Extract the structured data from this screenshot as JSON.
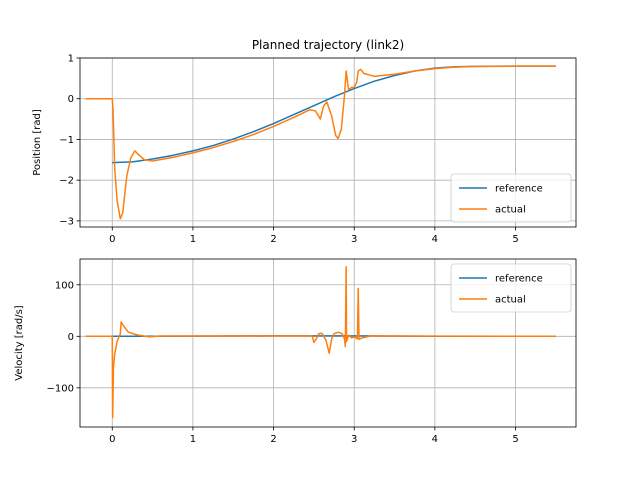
{
  "chart_data": [
    {
      "type": "line",
      "title": "Planned trajectory (link2)",
      "xlabel": "",
      "ylabel": "Position [rad]",
      "xlim": [
        -0.4,
        5.75
      ],
      "ylim": [
        -3.15,
        1.0
      ],
      "xticks": [
        0,
        1,
        2,
        3,
        4,
        5
      ],
      "yticks": [
        -3,
        -2,
        -1,
        0,
        1
      ],
      "grid": true,
      "legend": "bottom-right",
      "series": [
        {
          "name": "reference",
          "color": "#1f77b4",
          "points": [
            [
              0.0,
              -1.57
            ],
            [
              0.25,
              -1.55
            ],
            [
              0.5,
              -1.48
            ],
            [
              0.75,
              -1.39
            ],
            [
              1.0,
              -1.28
            ],
            [
              1.25,
              -1.15
            ],
            [
              1.5,
              -0.99
            ],
            [
              1.75,
              -0.81
            ],
            [
              2.0,
              -0.61
            ],
            [
              2.25,
              -0.39
            ],
            [
              2.5,
              -0.17
            ],
            [
              2.75,
              0.05
            ],
            [
              3.0,
              0.25
            ],
            [
              3.25,
              0.43
            ],
            [
              3.5,
              0.57
            ],
            [
              3.75,
              0.68
            ],
            [
              4.0,
              0.75
            ],
            [
              4.25,
              0.785
            ],
            [
              4.5,
              0.795
            ],
            [
              5.0,
              0.8
            ],
            [
              5.5,
              0.8
            ]
          ]
        },
        {
          "name": "actual",
          "color": "#ff7f0e",
          "points": [
            [
              -0.33,
              0.0
            ],
            [
              0.0,
              0.0
            ],
            [
              0.01,
              -0.3
            ],
            [
              0.03,
              -1.7
            ],
            [
              0.06,
              -2.5
            ],
            [
              0.1,
              -2.95
            ],
            [
              0.13,
              -2.8
            ],
            [
              0.18,
              -1.9
            ],
            [
              0.23,
              -1.45
            ],
            [
              0.28,
              -1.28
            ],
            [
              0.33,
              -1.38
            ],
            [
              0.4,
              -1.5
            ],
            [
              0.5,
              -1.53
            ],
            [
              0.75,
              -1.44
            ],
            [
              1.0,
              -1.33
            ],
            [
              1.25,
              -1.2
            ],
            [
              1.5,
              -1.05
            ],
            [
              1.75,
              -0.88
            ],
            [
              2.0,
              -0.68
            ],
            [
              2.25,
              -0.46
            ],
            [
              2.45,
              -0.27
            ],
            [
              2.52,
              -0.3
            ],
            [
              2.58,
              -0.5
            ],
            [
              2.62,
              -0.18
            ],
            [
              2.66,
              -0.08
            ],
            [
              2.72,
              -0.42
            ],
            [
              2.77,
              -0.9
            ],
            [
              2.8,
              -0.98
            ],
            [
              2.84,
              -0.75
            ],
            [
              2.88,
              0.1
            ],
            [
              2.9,
              0.68
            ],
            [
              2.93,
              0.22
            ],
            [
              2.97,
              0.28
            ],
            [
              3.0,
              0.28
            ],
            [
              3.03,
              0.4
            ],
            [
              3.05,
              0.68
            ],
            [
              3.08,
              0.72
            ],
            [
              3.12,
              0.62
            ],
            [
              3.25,
              0.55
            ],
            [
              3.5,
              0.6
            ],
            [
              3.75,
              0.68
            ],
            [
              4.0,
              0.74
            ],
            [
              4.25,
              0.775
            ],
            [
              4.5,
              0.79
            ],
            [
              5.0,
              0.8
            ],
            [
              5.5,
              0.8
            ]
          ]
        }
      ]
    },
    {
      "type": "line",
      "title": "",
      "xlabel": "",
      "ylabel": "Velocity [rad/s]",
      "xlim": [
        -0.4,
        5.75
      ],
      "ylim": [
        -176,
        150
      ],
      "xticks": [
        0,
        1,
        2,
        3,
        4,
        5
      ],
      "yticks": [
        -100,
        0,
        100
      ],
      "grid": true,
      "legend": "top-right",
      "series": [
        {
          "name": "reference",
          "color": "#1f77b4",
          "points": [
            [
              0.0,
              0.0
            ],
            [
              1.0,
              0.4
            ],
            [
              2.0,
              0.8
            ],
            [
              3.0,
              0.8
            ],
            [
              4.0,
              0.2
            ],
            [
              5.5,
              0.0
            ]
          ]
        },
        {
          "name": "actual",
          "color": "#ff7f0e",
          "points": [
            [
              -0.33,
              0.0
            ],
            [
              0.0,
              0.0
            ],
            [
              0.005,
              -158
            ],
            [
              0.015,
              -60
            ],
            [
              0.03,
              -35
            ],
            [
              0.06,
              -10
            ],
            [
              0.1,
              5
            ],
            [
              0.11,
              28
            ],
            [
              0.14,
              20
            ],
            [
              0.2,
              8
            ],
            [
              0.3,
              3
            ],
            [
              0.45,
              -1
            ],
            [
              0.6,
              0.5
            ],
            [
              1.0,
              0.5
            ],
            [
              2.0,
              0.5
            ],
            [
              2.48,
              0.5
            ],
            [
              2.5,
              -12
            ],
            [
              2.53,
              -5
            ],
            [
              2.56,
              5
            ],
            [
              2.6,
              6
            ],
            [
              2.65,
              -8
            ],
            [
              2.69,
              -33
            ],
            [
              2.72,
              -5
            ],
            [
              2.75,
              5
            ],
            [
              2.8,
              8
            ],
            [
              2.85,
              5
            ],
            [
              2.88,
              -5
            ],
            [
              2.89,
              -20
            ],
            [
              2.9,
              135
            ],
            [
              2.905,
              -10
            ],
            [
              2.93,
              2
            ],
            [
              2.97,
              -3
            ],
            [
              3.0,
              -1
            ],
            [
              3.04,
              -5
            ],
            [
              3.05,
              93
            ],
            [
              3.06,
              -6
            ],
            [
              3.1,
              -3
            ],
            [
              3.2,
              0.5
            ],
            [
              4.0,
              0.3
            ],
            [
              5.5,
              0.0
            ]
          ]
        }
      ]
    }
  ]
}
